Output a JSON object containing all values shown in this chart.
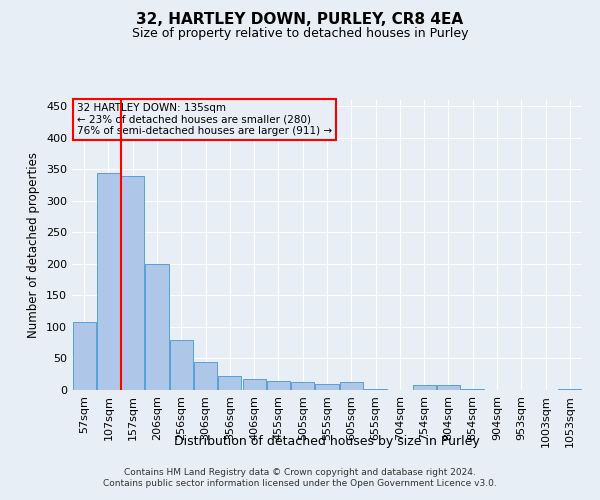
{
  "title": "32, HARTLEY DOWN, PURLEY, CR8 4EA",
  "subtitle": "Size of property relative to detached houses in Purley",
  "xlabel": "Distribution of detached houses by size in Purley",
  "ylabel": "Number of detached properties",
  "footer_line1": "Contains HM Land Registry data © Crown copyright and database right 2024.",
  "footer_line2": "Contains public sector information licensed under the Open Government Licence v3.0.",
  "bin_labels": [
    "57sqm",
    "107sqm",
    "157sqm",
    "206sqm",
    "256sqm",
    "306sqm",
    "356sqm",
    "406sqm",
    "455sqm",
    "505sqm",
    "555sqm",
    "605sqm",
    "655sqm",
    "704sqm",
    "754sqm",
    "804sqm",
    "854sqm",
    "904sqm",
    "953sqm",
    "1003sqm",
    "1053sqm"
  ],
  "bar_values": [
    108,
    345,
    340,
    200,
    80,
    45,
    22,
    17,
    14,
    12,
    10,
    12,
    2,
    0,
    8,
    8,
    2,
    0,
    0,
    0,
    2
  ],
  "bar_color": "#aec6e8",
  "bar_edge_color": "#5a9fd4",
  "annotation_box_text": "32 HARTLEY DOWN: 135sqm\n← 23% of detached houses are smaller (280)\n76% of semi-detached houses are larger (911) →",
  "bg_color": "#e8eef5",
  "grid_color": "#ffffff",
  "ylim": [
    0,
    460
  ],
  "yticks": [
    0,
    50,
    100,
    150,
    200,
    250,
    300,
    350,
    400,
    450
  ],
  "red_line_x": 1.5
}
